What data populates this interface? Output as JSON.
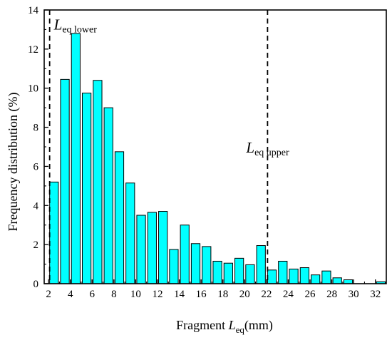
{
  "chart_data": {
    "type": "bar",
    "title": "",
    "xlabel": {
      "prefix": "Fragment ",
      "var": "L",
      "sub": "eq",
      "unit": "(mm)"
    },
    "ylabel": "Frequency distribution (%)",
    "xlim": [
      1.6,
      33
    ],
    "ylim": [
      0,
      14
    ],
    "xticks": [
      2,
      4,
      6,
      8,
      10,
      12,
      14,
      16,
      18,
      20,
      22,
      24,
      26,
      28,
      30,
      32
    ],
    "yticks": [
      0,
      2,
      4,
      6,
      8,
      10,
      12,
      14
    ],
    "bar_color": "#00FFFF",
    "bar_width": 0.8,
    "x": [
      2.5,
      3.5,
      4.5,
      5.5,
      6.5,
      7.5,
      8.5,
      9.5,
      10.5,
      11.5,
      12.5,
      13.5,
      14.5,
      15.5,
      16.5,
      17.5,
      18.5,
      19.5,
      20.5,
      21.5,
      22.5,
      23.5,
      24.5,
      25.5,
      26.5,
      27.5,
      28.5,
      29.5,
      30.5,
      31.5,
      32.5
    ],
    "values": [
      5.2,
      10.45,
      12.8,
      9.75,
      10.4,
      9.0,
      6.75,
      5.15,
      3.5,
      3.65,
      3.7,
      1.75,
      3.0,
      2.05,
      1.9,
      1.15,
      1.05,
      1.3,
      0.97,
      1.95,
      0.7,
      1.15,
      0.75,
      0.82,
      0.45,
      0.65,
      0.3,
      0.2,
      0.0,
      0.0,
      0.1
    ],
    "annotations": [
      {
        "var": "L",
        "sub": "eq lower",
        "x": 2.1
      },
      {
        "var": "L",
        "sub": "eq upper",
        "x": 22.1
      }
    ]
  }
}
